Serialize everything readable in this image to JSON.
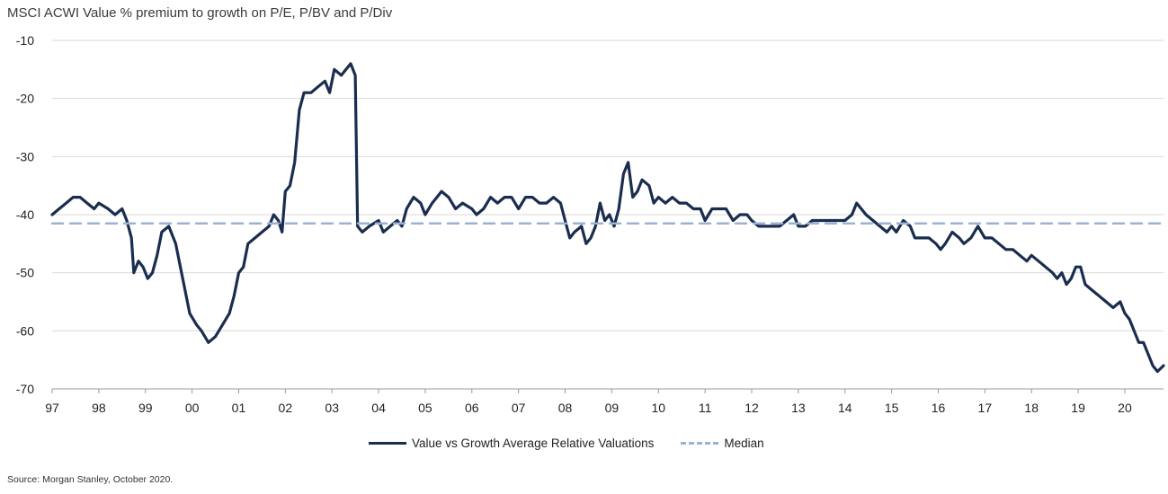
{
  "title": "MSCI ACWI Value % premium to growth on P/E, P/BV and P/Div",
  "source": "Source: Morgan Stanley, October 2020.",
  "chart_data": {
    "type": "line",
    "ylim": [
      -70,
      -10
    ],
    "yticks": [
      -10,
      -20,
      -30,
      -40,
      -50,
      -60,
      -70
    ],
    "xlim": [
      1997,
      2020.83
    ],
    "xticks": [
      {
        "x": 1997,
        "label": "97"
      },
      {
        "x": 1998,
        "label": "98"
      },
      {
        "x": 1999,
        "label": "99"
      },
      {
        "x": 2000,
        "label": "00"
      },
      {
        "x": 2001,
        "label": "01"
      },
      {
        "x": 2002,
        "label": "02"
      },
      {
        "x": 2003,
        "label": "03"
      },
      {
        "x": 2004,
        "label": "04"
      },
      {
        "x": 2005,
        "label": "05"
      },
      {
        "x": 2006,
        "label": "06"
      },
      {
        "x": 2007,
        "label": "07"
      },
      {
        "x": 2008,
        "label": "08"
      },
      {
        "x": 2009,
        "label": "09"
      },
      {
        "x": 2010,
        "label": "10"
      },
      {
        "x": 2011,
        "label": "11"
      },
      {
        "x": 2012,
        "label": "12"
      },
      {
        "x": 2013,
        "label": "13"
      },
      {
        "x": 2014,
        "label": "14"
      },
      {
        "x": 2015,
        "label": "15"
      },
      {
        "x": 2016,
        "label": "16"
      },
      {
        "x": 2017,
        "label": "17"
      },
      {
        "x": 2018,
        "label": "18"
      },
      {
        "x": 2019,
        "label": "19"
      },
      {
        "x": 2020,
        "label": "20"
      }
    ],
    "grid": "horizontal",
    "legend_position": "bottom",
    "series": [
      {
        "name": "Value vs Growth Average Relative Valuations",
        "color": "#1b2d4f",
        "style": "solid",
        "points": [
          [
            1997.0,
            -40
          ],
          [
            1997.15,
            -39
          ],
          [
            1997.3,
            -38
          ],
          [
            1997.45,
            -37
          ],
          [
            1997.6,
            -37
          ],
          [
            1997.75,
            -38
          ],
          [
            1997.9,
            -39
          ],
          [
            1998.0,
            -38
          ],
          [
            1998.2,
            -39
          ],
          [
            1998.35,
            -40
          ],
          [
            1998.5,
            -39
          ],
          [
            1998.6,
            -41
          ],
          [
            1998.7,
            -44
          ],
          [
            1998.75,
            -50
          ],
          [
            1998.85,
            -48
          ],
          [
            1998.95,
            -49
          ],
          [
            1999.05,
            -51
          ],
          [
            1999.15,
            -50
          ],
          [
            1999.25,
            -47
          ],
          [
            1999.35,
            -43
          ],
          [
            1999.5,
            -42
          ],
          [
            1999.65,
            -45
          ],
          [
            1999.75,
            -49
          ],
          [
            1999.85,
            -53
          ],
          [
            1999.95,
            -57
          ],
          [
            2000.1,
            -59
          ],
          [
            2000.2,
            -60
          ],
          [
            2000.35,
            -62
          ],
          [
            2000.5,
            -61
          ],
          [
            2000.65,
            -59
          ],
          [
            2000.8,
            -57
          ],
          [
            2000.9,
            -54
          ],
          [
            2001.0,
            -50
          ],
          [
            2001.1,
            -49
          ],
          [
            2001.2,
            -45
          ],
          [
            2001.35,
            -44
          ],
          [
            2001.5,
            -43
          ],
          [
            2001.65,
            -42
          ],
          [
            2001.75,
            -40
          ],
          [
            2001.85,
            -41
          ],
          [
            2001.93,
            -43
          ],
          [
            2002.0,
            -36
          ],
          [
            2002.1,
            -35
          ],
          [
            2002.2,
            -31
          ],
          [
            2002.3,
            -22
          ],
          [
            2002.4,
            -19
          ],
          [
            2002.55,
            -19
          ],
          [
            2002.7,
            -18
          ],
          [
            2002.85,
            -17
          ],
          [
            2002.95,
            -19
          ],
          [
            2003.05,
            -15
          ],
          [
            2003.2,
            -16
          ],
          [
            2003.3,
            -15
          ],
          [
            2003.4,
            -14
          ],
          [
            2003.5,
            -16
          ],
          [
            2003.55,
            -42
          ],
          [
            2003.65,
            -43
          ],
          [
            2003.8,
            -42
          ],
          [
            2004.0,
            -41
          ],
          [
            2004.1,
            -43
          ],
          [
            2004.25,
            -42
          ],
          [
            2004.4,
            -41
          ],
          [
            2004.5,
            -42
          ],
          [
            2004.6,
            -39
          ],
          [
            2004.75,
            -37
          ],
          [
            2004.9,
            -38
          ],
          [
            2005.0,
            -40
          ],
          [
            2005.15,
            -38
          ],
          [
            2005.25,
            -37
          ],
          [
            2005.35,
            -36
          ],
          [
            2005.5,
            -37
          ],
          [
            2005.65,
            -39
          ],
          [
            2005.8,
            -38
          ],
          [
            2006.0,
            -39
          ],
          [
            2006.1,
            -40
          ],
          [
            2006.25,
            -39
          ],
          [
            2006.4,
            -37
          ],
          [
            2006.55,
            -38
          ],
          [
            2006.7,
            -37
          ],
          [
            2006.85,
            -37
          ],
          [
            2007.0,
            -39
          ],
          [
            2007.15,
            -37
          ],
          [
            2007.3,
            -37
          ],
          [
            2007.45,
            -38
          ],
          [
            2007.6,
            -38
          ],
          [
            2007.75,
            -37
          ],
          [
            2007.9,
            -38
          ],
          [
            2008.0,
            -41
          ],
          [
            2008.1,
            -44
          ],
          [
            2008.2,
            -43
          ],
          [
            2008.35,
            -42
          ],
          [
            2008.45,
            -45
          ],
          [
            2008.55,
            -44
          ],
          [
            2008.65,
            -42
          ],
          [
            2008.75,
            -38
          ],
          [
            2008.85,
            -41
          ],
          [
            2008.95,
            -40
          ],
          [
            2009.05,
            -42
          ],
          [
            2009.15,
            -39
          ],
          [
            2009.25,
            -33
          ],
          [
            2009.35,
            -31
          ],
          [
            2009.45,
            -37
          ],
          [
            2009.55,
            -36
          ],
          [
            2009.65,
            -34
          ],
          [
            2009.8,
            -35
          ],
          [
            2009.9,
            -38
          ],
          [
            2010.0,
            -37
          ],
          [
            2010.15,
            -38
          ],
          [
            2010.3,
            -37
          ],
          [
            2010.45,
            -38
          ],
          [
            2010.6,
            -38
          ],
          [
            2010.75,
            -39
          ],
          [
            2010.9,
            -39
          ],
          [
            2011.0,
            -41
          ],
          [
            2011.15,
            -39
          ],
          [
            2011.3,
            -39
          ],
          [
            2011.45,
            -39
          ],
          [
            2011.6,
            -41
          ],
          [
            2011.75,
            -40
          ],
          [
            2011.9,
            -40
          ],
          [
            2012.0,
            -41
          ],
          [
            2012.15,
            -42
          ],
          [
            2012.3,
            -42
          ],
          [
            2012.45,
            -42
          ],
          [
            2012.6,
            -42
          ],
          [
            2012.75,
            -41
          ],
          [
            2012.9,
            -40
          ],
          [
            2013.0,
            -42
          ],
          [
            2013.15,
            -42
          ],
          [
            2013.3,
            -41
          ],
          [
            2013.45,
            -41
          ],
          [
            2013.6,
            -41
          ],
          [
            2013.75,
            -41
          ],
          [
            2013.9,
            -41
          ],
          [
            2014.0,
            -41
          ],
          [
            2014.15,
            -40
          ],
          [
            2014.25,
            -38
          ],
          [
            2014.35,
            -39
          ],
          [
            2014.45,
            -40
          ],
          [
            2014.6,
            -41
          ],
          [
            2014.75,
            -42
          ],
          [
            2014.9,
            -43
          ],
          [
            2015.0,
            -42
          ],
          [
            2015.1,
            -43
          ],
          [
            2015.25,
            -41
          ],
          [
            2015.4,
            -42
          ],
          [
            2015.5,
            -44
          ],
          [
            2015.65,
            -44
          ],
          [
            2015.8,
            -44
          ],
          [
            2015.95,
            -45
          ],
          [
            2016.05,
            -46
          ],
          [
            2016.15,
            -45
          ],
          [
            2016.3,
            -43
          ],
          [
            2016.45,
            -44
          ],
          [
            2016.55,
            -45
          ],
          [
            2016.7,
            -44
          ],
          [
            2016.85,
            -42
          ],
          [
            2017.0,
            -44
          ],
          [
            2017.15,
            -44
          ],
          [
            2017.3,
            -45
          ],
          [
            2017.45,
            -46
          ],
          [
            2017.6,
            -46
          ],
          [
            2017.75,
            -47
          ],
          [
            2017.9,
            -48
          ],
          [
            2018.0,
            -47
          ],
          [
            2018.15,
            -48
          ],
          [
            2018.3,
            -49
          ],
          [
            2018.45,
            -50
          ],
          [
            2018.55,
            -51
          ],
          [
            2018.65,
            -50
          ],
          [
            2018.75,
            -52
          ],
          [
            2018.85,
            -51
          ],
          [
            2018.95,
            -49
          ],
          [
            2019.05,
            -49
          ],
          [
            2019.15,
            -52
          ],
          [
            2019.3,
            -53
          ],
          [
            2019.45,
            -54
          ],
          [
            2019.6,
            -55
          ],
          [
            2019.75,
            -56
          ],
          [
            2019.9,
            -55
          ],
          [
            2020.0,
            -57
          ],
          [
            2020.1,
            -58
          ],
          [
            2020.2,
            -60
          ],
          [
            2020.3,
            -62
          ],
          [
            2020.4,
            -62
          ],
          [
            2020.5,
            -64
          ],
          [
            2020.6,
            -66
          ],
          [
            2020.7,
            -67
          ],
          [
            2020.83,
            -66
          ]
        ]
      },
      {
        "name": "Median",
        "color": "#9ab3d3",
        "style": "dashed",
        "points": [
          [
            1997.0,
            -41.5
          ],
          [
            2020.83,
            -41.5
          ]
        ]
      }
    ]
  }
}
